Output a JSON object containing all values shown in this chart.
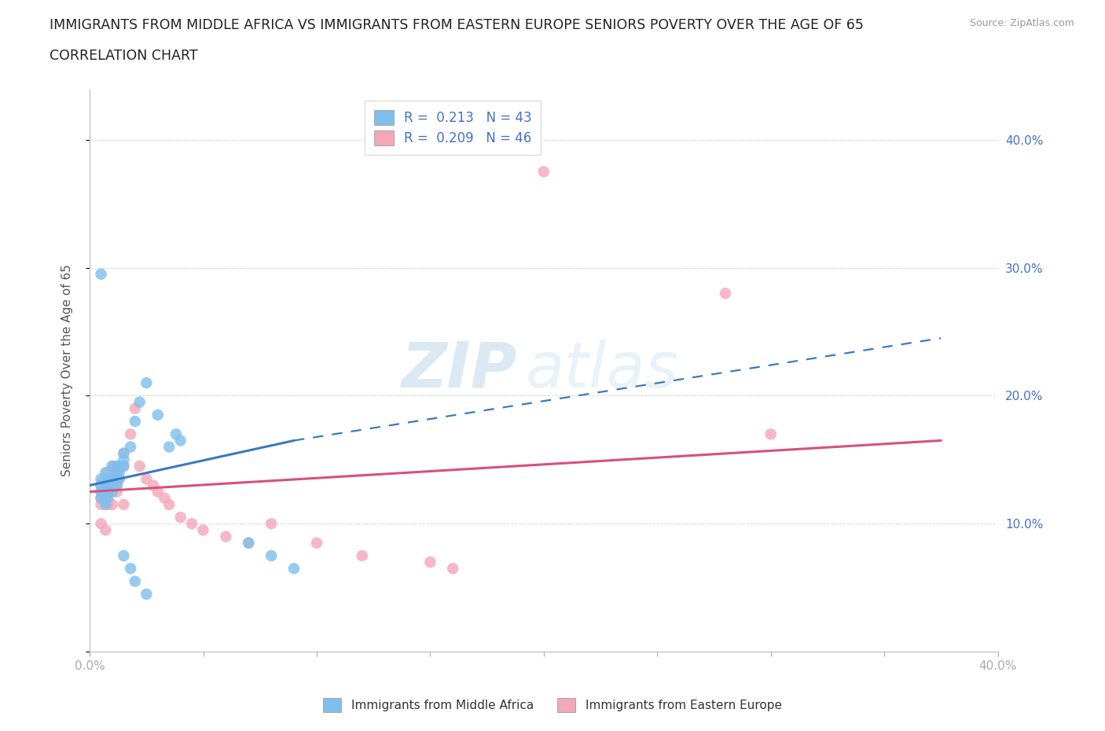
{
  "title_line1": "IMMIGRANTS FROM MIDDLE AFRICA VS IMMIGRANTS FROM EASTERN EUROPE SENIORS POVERTY OVER THE AGE OF 65",
  "title_line2": "CORRELATION CHART",
  "source_text": "Source: ZipAtlas.com",
  "ylabel": "Seniors Poverty Over the Age of 65",
  "xlim": [
    0.0,
    0.4
  ],
  "ylim": [
    0.0,
    0.44
  ],
  "watermark": "ZIPatlas",
  "legend_r1": "R =  0.213   N = 43",
  "legend_r2": "R =  0.209   N = 46",
  "color_blue": "#7fbfed",
  "color_pink": "#f4a7b8",
  "color_blue_line": "#3a7abf",
  "color_pink_line": "#d94f7e",
  "grid_color": "#cccccc",
  "blue_scatter": [
    [
      0.005,
      0.135
    ],
    [
      0.005,
      0.13
    ],
    [
      0.005,
      0.125
    ],
    [
      0.005,
      0.12
    ],
    [
      0.007,
      0.14
    ],
    [
      0.007,
      0.13
    ],
    [
      0.007,
      0.125
    ],
    [
      0.007,
      0.12
    ],
    [
      0.007,
      0.115
    ],
    [
      0.008,
      0.135
    ],
    [
      0.008,
      0.13
    ],
    [
      0.008,
      0.125
    ],
    [
      0.008,
      0.12
    ],
    [
      0.01,
      0.145
    ],
    [
      0.01,
      0.135
    ],
    [
      0.01,
      0.13
    ],
    [
      0.01,
      0.125
    ],
    [
      0.012,
      0.145
    ],
    [
      0.012,
      0.14
    ],
    [
      0.012,
      0.135
    ],
    [
      0.012,
      0.13
    ],
    [
      0.013,
      0.145
    ],
    [
      0.013,
      0.14
    ],
    [
      0.013,
      0.135
    ],
    [
      0.015,
      0.155
    ],
    [
      0.015,
      0.15
    ],
    [
      0.015,
      0.145
    ],
    [
      0.018,
      0.16
    ],
    [
      0.02,
      0.18
    ],
    [
      0.022,
      0.195
    ],
    [
      0.025,
      0.21
    ],
    [
      0.03,
      0.185
    ],
    [
      0.035,
      0.16
    ],
    [
      0.038,
      0.17
    ],
    [
      0.04,
      0.165
    ],
    [
      0.005,
      0.295
    ],
    [
      0.07,
      0.085
    ],
    [
      0.08,
      0.075
    ],
    [
      0.09,
      0.065
    ],
    [
      0.015,
      0.075
    ],
    [
      0.018,
      0.065
    ],
    [
      0.02,
      0.055
    ],
    [
      0.025,
      0.045
    ]
  ],
  "pink_scatter": [
    [
      0.005,
      0.13
    ],
    [
      0.005,
      0.125
    ],
    [
      0.005,
      0.12
    ],
    [
      0.005,
      0.115
    ],
    [
      0.007,
      0.135
    ],
    [
      0.007,
      0.13
    ],
    [
      0.007,
      0.125
    ],
    [
      0.007,
      0.12
    ],
    [
      0.008,
      0.14
    ],
    [
      0.008,
      0.135
    ],
    [
      0.008,
      0.125
    ],
    [
      0.008,
      0.115
    ],
    [
      0.01,
      0.145
    ],
    [
      0.01,
      0.135
    ],
    [
      0.01,
      0.125
    ],
    [
      0.01,
      0.115
    ],
    [
      0.012,
      0.14
    ],
    [
      0.012,
      0.13
    ],
    [
      0.012,
      0.125
    ],
    [
      0.013,
      0.135
    ],
    [
      0.015,
      0.155
    ],
    [
      0.015,
      0.145
    ],
    [
      0.015,
      0.115
    ],
    [
      0.018,
      0.17
    ],
    [
      0.02,
      0.19
    ],
    [
      0.022,
      0.145
    ],
    [
      0.025,
      0.135
    ],
    [
      0.028,
      0.13
    ],
    [
      0.03,
      0.125
    ],
    [
      0.033,
      0.12
    ],
    [
      0.035,
      0.115
    ],
    [
      0.04,
      0.105
    ],
    [
      0.045,
      0.1
    ],
    [
      0.05,
      0.095
    ],
    [
      0.06,
      0.09
    ],
    [
      0.07,
      0.085
    ],
    [
      0.08,
      0.1
    ],
    [
      0.1,
      0.085
    ],
    [
      0.12,
      0.075
    ],
    [
      0.15,
      0.07
    ],
    [
      0.16,
      0.065
    ],
    [
      0.28,
      0.28
    ],
    [
      0.3,
      0.17
    ],
    [
      0.2,
      0.375
    ],
    [
      0.005,
      0.1
    ],
    [
      0.007,
      0.095
    ]
  ],
  "blue_trendline_solid": [
    [
      0.0,
      0.13
    ],
    [
      0.09,
      0.165
    ]
  ],
  "blue_trendline_dashed": [
    [
      0.09,
      0.165
    ],
    [
      0.375,
      0.245
    ]
  ],
  "pink_trendline": [
    [
      0.0,
      0.125
    ],
    [
      0.375,
      0.165
    ]
  ]
}
